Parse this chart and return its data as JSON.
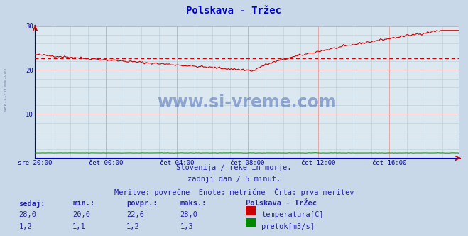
{
  "title": "Polskava - Tržec",
  "bg_color": "#c8d8e8",
  "plot_bg_color": "#dce8f0",
  "grid_color_minor": "#b8ccd8",
  "grid_color_major": "#e8a0a0",
  "xlabel_color": "#0000aa",
  "ylabel_color": "#0000aa",
  "title_color": "#0000cc",
  "text_color": "#2222aa",
  "x_labels": [
    "sre 20:00",
    "čet 00:00",
    "čet 04:00",
    "čet 08:00",
    "čet 12:00",
    "čet 16:00"
  ],
  "x_ticks_idx": [
    0,
    48,
    96,
    144,
    192,
    240
  ],
  "ylim": [
    0,
    30
  ],
  "yticks": [
    10,
    20,
    30
  ],
  "n_points": 288,
  "avg_line": 22.6,
  "temp_color": "#cc0000",
  "flow_color": "#008800",
  "avg_line_color": "#cc0000",
  "watermark_text": "www.si-vreme.com",
  "watermark_color": "#3355aa",
  "footer_line1": "Slovenija / reke in morje.",
  "footer_line2": "zadnji dan / 5 minut.",
  "footer_line3": "Meritve: povrečne  Enote: metrične  Črta: prva meritev",
  "table_headers": [
    "sedaj:",
    "min.:",
    "povpr.:",
    "maks.:",
    "Polskava - TrŽec"
  ],
  "table_row1": [
    "28,0",
    "20,0",
    "22,6",
    "28,0",
    "temperatura[C]"
  ],
  "table_row2": [
    "1,2",
    "1,1",
    "1,2",
    "1,3",
    "pretok[m3/s]"
  ],
  "temp_color_box": "#cc0000",
  "flow_color_box": "#008800",
  "spine_color": "#0000cc",
  "arrow_color": "#cc0000"
}
